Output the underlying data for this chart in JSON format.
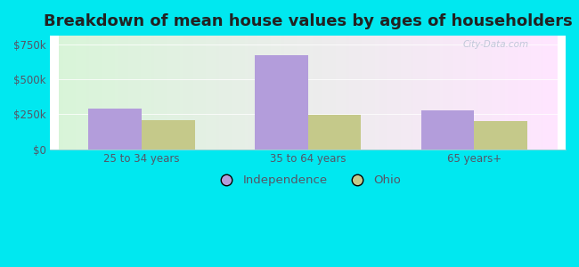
{
  "title": "Breakdown of mean house values by ages of householders",
  "categories": [
    "25 to 34 years",
    "35 to 64 years",
    "65 years+"
  ],
  "independence_values": [
    290000,
    670000,
    280000
  ],
  "ohio_values": [
    210000,
    245000,
    200000
  ],
  "independence_color": "#b39ddb",
  "ohio_color": "#c5c98a",
  "yticks": [
    0,
    250000,
    500000,
    750000
  ],
  "ytick_labels": [
    "$0",
    "$250k",
    "$500k",
    "$750k"
  ],
  "ylim": [
    0,
    810000
  ],
  "bar_width": 0.32,
  "background_outer": "#00e8f0",
  "legend_labels": [
    "Independence",
    "Ohio"
  ],
  "title_fontsize": 13,
  "tick_fontsize": 8.5,
  "legend_fontsize": 9.5,
  "watermark": "City-Data.com"
}
